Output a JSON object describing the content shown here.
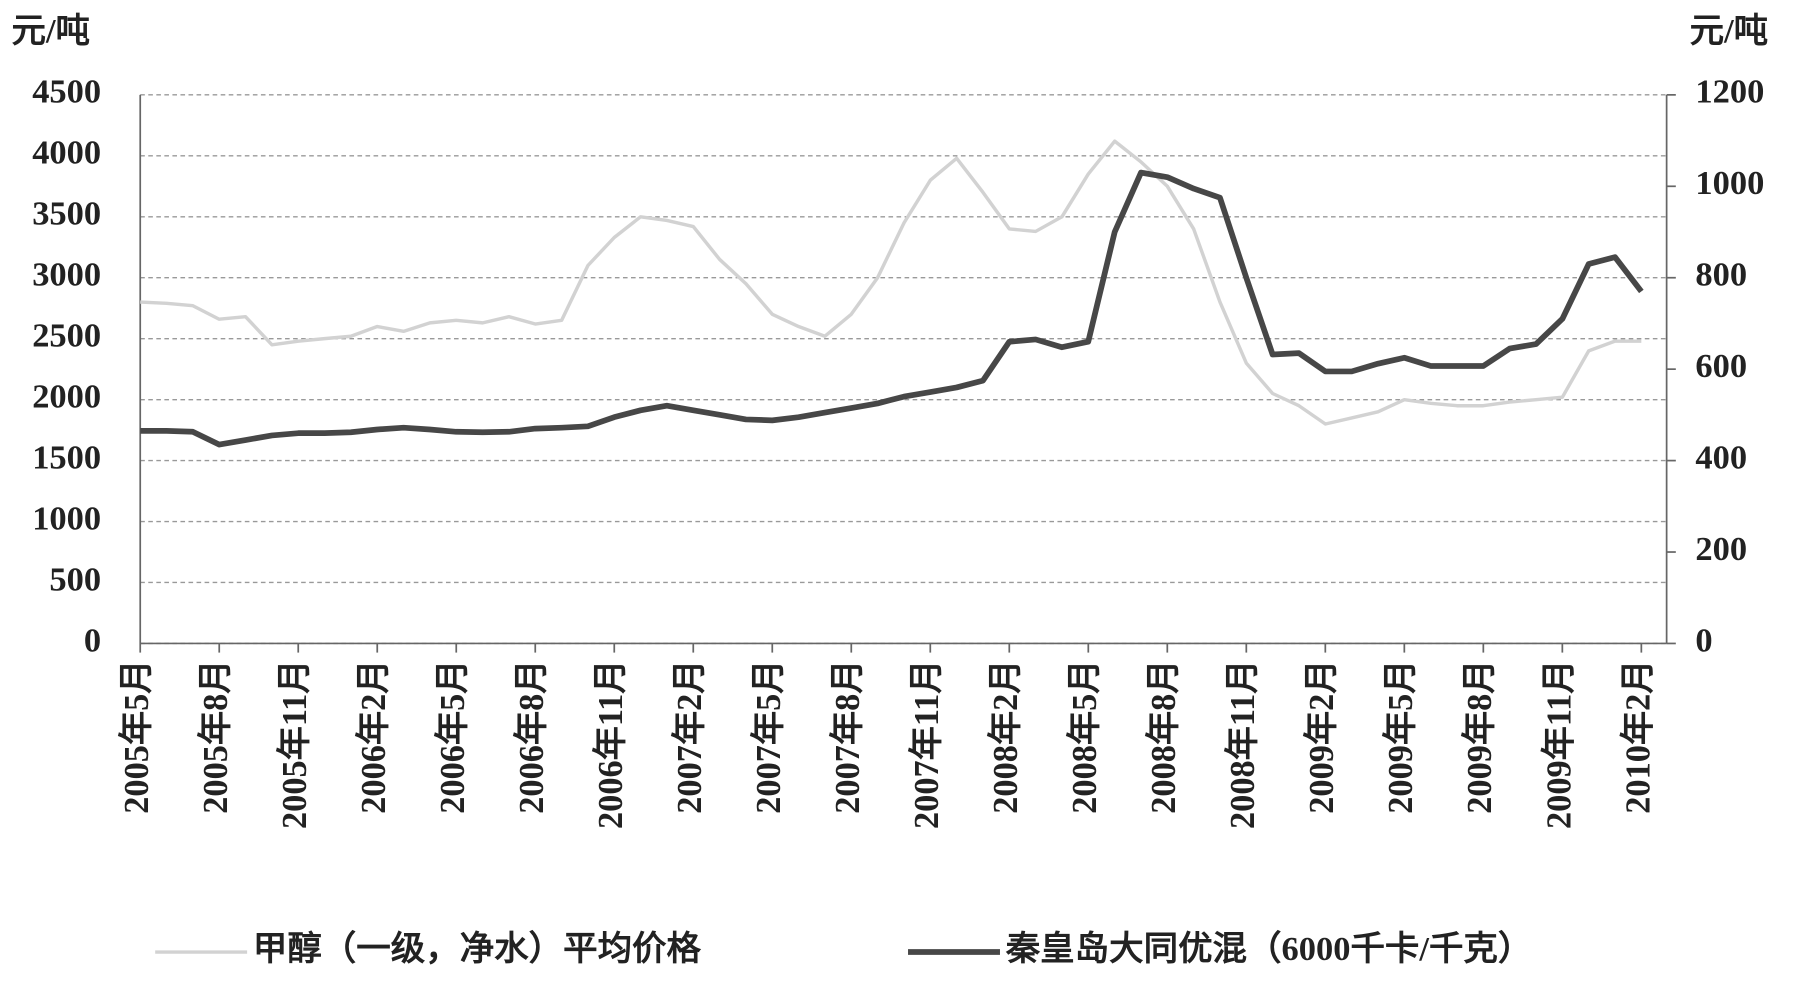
{
  "chart_data": {
    "type": "line",
    "y_label": "元/吨",
    "y2_label": "元/吨",
    "categories": [
      "2005年5月",
      null,
      null,
      "2005年8月",
      null,
      null,
      "2005年11月",
      null,
      null,
      "2006年2月",
      null,
      null,
      "2006年5月",
      null,
      null,
      "2006年8月",
      null,
      null,
      "2006年11月",
      null,
      null,
      "2007年2月",
      null,
      null,
      "2007年5月",
      null,
      null,
      "2007年8月",
      null,
      null,
      "2007年11月",
      null,
      null,
      "2008年2月",
      null,
      null,
      "2008年5月",
      null,
      null,
      "2008年8月",
      null,
      null,
      "2008年11月",
      null,
      null,
      "2009年2月",
      null,
      null,
      "2009年5月",
      null,
      null,
      "2009年8月",
      null,
      null,
      "2009年11月",
      null,
      null,
      "2010年2月"
    ],
    "series": [
      {
        "name": "甲醇（一级，净水）平均价格",
        "color": "#d2d2d2",
        "axis": "y",
        "values": [
          2800,
          2790,
          2770,
          2660,
          2680,
          2450,
          2480,
          2500,
          2520,
          2600,
          2560,
          2630,
          2650,
          2630,
          2680,
          2620,
          2650,
          3100,
          3330,
          3500,
          3470,
          3420,
          3150,
          2950,
          2700,
          2600,
          2520,
          2700,
          3000,
          3450,
          3800,
          3980,
          3700,
          3400,
          3380,
          3500,
          3850,
          4120,
          3950,
          3750,
          3400,
          2800,
          2300,
          2050,
          1950,
          1800,
          1850,
          1900,
          2000,
          1970,
          1950,
          1950,
          1980,
          2000,
          2020,
          2400,
          2480,
          2480
        ]
      },
      {
        "name": "秦皇岛大同优混（6000千卡/千克）",
        "color": "#474747",
        "axis": "y2",
        "values": [
          465,
          465,
          463,
          435,
          445,
          455,
          460,
          460,
          462,
          468,
          472,
          468,
          463,
          462,
          463,
          470,
          472,
          475,
          495,
          510,
          520,
          510,
          500,
          490,
          488,
          495,
          505,
          515,
          525,
          540,
          550,
          560,
          575,
          660,
          665,
          648,
          660,
          900,
          1030,
          1020,
          995,
          975,
          800,
          632,
          635,
          595,
          595,
          612,
          625,
          607,
          607,
          607,
          645,
          655,
          710,
          830,
          845,
          770
        ]
      }
    ],
    "ylim": [
      0,
      4500
    ],
    "yticks": [
      0,
      500,
      1000,
      1500,
      2000,
      2500,
      3000,
      3500,
      4000,
      4500
    ],
    "y2lim": [
      0,
      1200
    ],
    "y2ticks": [
      0,
      200,
      400,
      600,
      800,
      1000,
      1200
    ],
    "grid": true,
    "legend": "bottom"
  }
}
